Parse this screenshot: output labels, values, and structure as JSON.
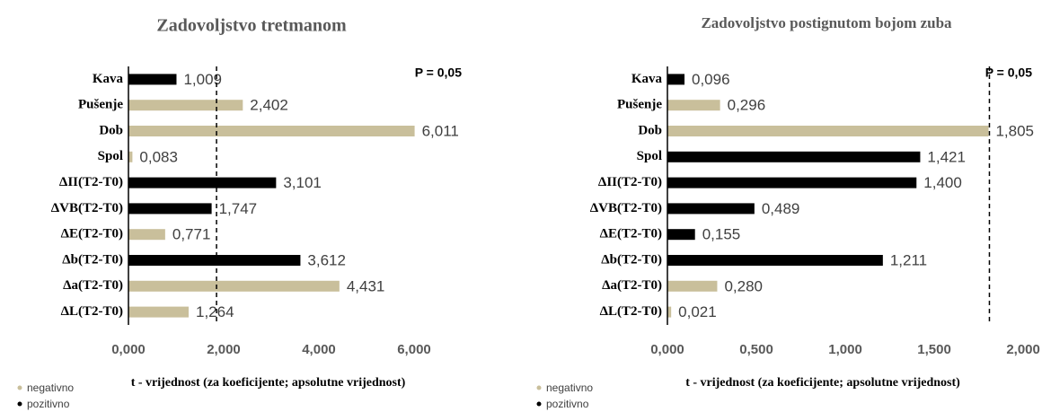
{
  "chart_data": [
    {
      "type": "bar",
      "title": "Zadovoljstvo tretmanom",
      "categories": [
        "Kava",
        "Pušenje",
        "Dob",
        "Spol",
        "ΔII(T2-T0)",
        "ΔVB(T2-T0)",
        "ΔE(T2-T0)",
        "Δb(T2-T0)",
        "Δa(T2-T0)",
        "ΔL(T2-T0)"
      ],
      "series": [
        {
          "name": "negativno",
          "color": "#c9bf9b",
          "values": [
            null,
            2.402,
            6.011,
            0.083,
            null,
            null,
            0.771,
            null,
            4.431,
            1.264
          ],
          "value_labels": [
            null,
            "2,402",
            "6,011",
            "0,083",
            null,
            null,
            "0,771",
            null,
            "4,431",
            "1,264"
          ]
        },
        {
          "name": "pozitivno",
          "color": "#000000",
          "values": [
            1.009,
            null,
            null,
            null,
            3.101,
            1.747,
            null,
            3.612,
            null,
            null
          ],
          "value_labels": [
            "1,009",
            null,
            null,
            null,
            "3,101",
            "1,747",
            null,
            "3,612",
            null,
            null
          ]
        }
      ],
      "xlim": [
        0,
        7
      ],
      "xticks": [
        {
          "value": 0,
          "label": "0,000"
        },
        {
          "value": 2,
          "label": "2,000"
        },
        {
          "value": 4,
          "label": "4,000"
        },
        {
          "value": 6,
          "label": "6,000"
        }
      ],
      "x_label": "t - vrijednost (za koeficijente; apsolutne vrijednost)",
      "reference_line": {
        "value": 1.85,
        "label": "P = 0,05"
      }
    },
    {
      "type": "bar",
      "title": "Zadovoljstvo postignutom bojom zuba",
      "categories": [
        "Kava",
        "Pušenje",
        "Dob",
        "Spol",
        "ΔII(T2-T0)",
        "ΔVB(T2-T0)",
        "ΔE(T2-T0)",
        "Δb(T2-T0)",
        "Δa(T2-T0)",
        "ΔL(T2-T0)"
      ],
      "series": [
        {
          "name": "negativno",
          "color": "#c9bf9b",
          "values": [
            null,
            0.296,
            1.805,
            null,
            null,
            null,
            null,
            null,
            0.28,
            0.021
          ],
          "value_labels": [
            null,
            "0,296",
            "1,805",
            null,
            null,
            null,
            null,
            null,
            "0,280",
            "0,021"
          ]
        },
        {
          "name": "pozitivno",
          "color": "#000000",
          "values": [
            0.096,
            null,
            null,
            1.421,
            1.4,
            0.489,
            0.155,
            1.211,
            null,
            null
          ],
          "value_labels": [
            "0,096",
            null,
            null,
            "1,421",
            "1,400",
            "0,489",
            "0,155",
            "1,211",
            null,
            null
          ]
        }
      ],
      "xlim": [
        0,
        2.05
      ],
      "xticks": [
        {
          "value": 0,
          "label": "0,000"
        },
        {
          "value": 0.5,
          "label": "0,500"
        },
        {
          "value": 1,
          "label": "1,000"
        },
        {
          "value": 1.5,
          "label": "1,500"
        },
        {
          "value": 2,
          "label": "2,000"
        }
      ],
      "x_label": "t - vrijednost (za koeficijente; apsolutne vrijednost)",
      "reference_line": {
        "value": 1.81,
        "label": "P = 0,05"
      }
    }
  ]
}
